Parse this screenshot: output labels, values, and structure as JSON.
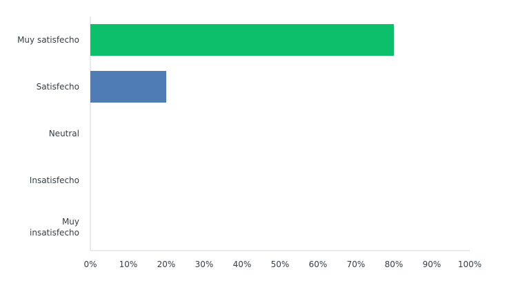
{
  "chart_data": {
    "type": "hbar",
    "categories": [
      "Muy satisfecho",
      "Satisfecho",
      "Neutral",
      "Insatisfecho",
      "Muy insatisfecho"
    ],
    "values": [
      80,
      20,
      0,
      0,
      0
    ],
    "colors": [
      "#0bbf6b",
      "#507cb6"
    ],
    "xlim": [
      0,
      100
    ],
    "xticks": [
      {
        "value": 0,
        "label": "0%"
      },
      {
        "value": 10,
        "label": "10%"
      },
      {
        "value": 20,
        "label": "20%"
      },
      {
        "value": 30,
        "label": "30%"
      },
      {
        "value": 40,
        "label": "40%"
      },
      {
        "value": 50,
        "label": "50%"
      },
      {
        "value": 60,
        "label": "60%"
      },
      {
        "value": 70,
        "label": "70%"
      },
      {
        "value": 80,
        "label": "80%"
      },
      {
        "value": 90,
        "label": "90%"
      },
      {
        "value": 100,
        "label": "100%"
      }
    ]
  }
}
